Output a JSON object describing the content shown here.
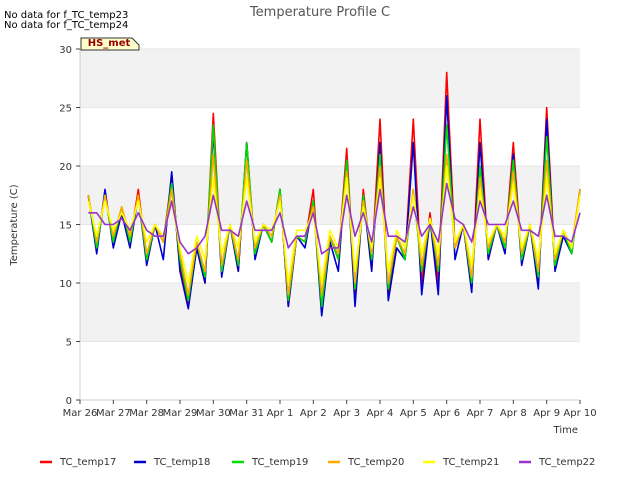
{
  "chart_data": {
    "type": "line",
    "title": "Temperature Profile C",
    "xlabel": "Time",
    "ylabel": "Temperature (C)",
    "ylim": [
      0,
      30
    ],
    "yticks": [
      0,
      5,
      10,
      15,
      20,
      25,
      30
    ],
    "xlim": [
      0,
      15
    ],
    "x_tick_labels": [
      "Mar 26",
      "Mar 27",
      "Mar 28",
      "Mar 29",
      "Mar 30",
      "Mar 31",
      "Apr 1",
      "Apr 2",
      "Apr 3",
      "Apr 4",
      "Apr 5",
      "Apr 6",
      "Apr 7",
      "Apr 8",
      "Apr 9",
      "Apr 10"
    ],
    "grid": "horizontal alternating bands",
    "legend_position": "bottom",
    "notes": [
      "No data for f_TC_temp23",
      "No data for f_TC_temp24"
    ],
    "badge": "HS_met",
    "x": [
      0.25,
      0.5,
      0.75,
      1,
      1.25,
      1.5,
      1.75,
      2,
      2.25,
      2.5,
      2.75,
      3,
      3.25,
      3.5,
      3.75,
      4,
      4.25,
      4.5,
      4.75,
      5,
      5.25,
      5.5,
      5.75,
      6,
      6.25,
      6.5,
      6.75,
      7,
      7.25,
      7.5,
      7.75,
      8,
      8.25,
      8.5,
      8.75,
      9,
      9.25,
      9.5,
      9.75,
      10,
      10.25,
      10.5,
      10.75,
      11,
      11.25,
      11.5,
      11.75,
      12,
      12.25,
      12.5,
      12.75,
      13,
      13.25,
      13.5,
      13.75,
      14,
      14.25,
      14.5,
      14.75,
      15
    ],
    "series": [
      {
        "name": "TC_temp17",
        "color": "#ff0000",
        "values": [
          17.5,
          13,
          17.5,
          13.5,
          16,
          13.5,
          18,
          12,
          15,
          13.5,
          19,
          11.5,
          8,
          13,
          10,
          24.5,
          11,
          15,
          11,
          22,
          12.5,
          15,
          13.5,
          18,
          8,
          14,
          13.5,
          18,
          7.5,
          14,
          12,
          21.5,
          9,
          18,
          11.5,
          24,
          9,
          14,
          12,
          24,
          10,
          16,
          10,
          28,
          13,
          15,
          9.5,
          24,
          12,
          15,
          13,
          22,
          12,
          15,
          10,
          25,
          11.5,
          14.5,
          13,
          18
        ]
      },
      {
        "name": "TC_temp18",
        "color": "#0000cc",
        "values": [
          17.5,
          12.5,
          18,
          13,
          16,
          13,
          17.5,
          11.5,
          15,
          12,
          19.5,
          11,
          7.8,
          13,
          10,
          23,
          10.5,
          15,
          11,
          22,
          12,
          15,
          13.5,
          18,
          8,
          14,
          13,
          17,
          7.2,
          13.5,
          11,
          20.5,
          8,
          17.5,
          11,
          22,
          8.5,
          13,
          12,
          22,
          9,
          15.5,
          9,
          26,
          12,
          15,
          9.2,
          22,
          12,
          15,
          12.5,
          21,
          11.5,
          15,
          9.5,
          24,
          11,
          14,
          12.5,
          18
        ]
      },
      {
        "name": "TC_temp19",
        "color": "#00dd00",
        "values": [
          17.5,
          13,
          17.5,
          13.5,
          16.5,
          13.5,
          17.5,
          12,
          15,
          13.5,
          18.5,
          12,
          8.5,
          13.5,
          10.5,
          23.5,
          11,
          15,
          11.5,
          22,
          12.5,
          15,
          13.5,
          18,
          8.5,
          14,
          13.5,
          17,
          8,
          14,
          12,
          20.5,
          9.5,
          17.5,
          12,
          21,
          9.5,
          14,
          12,
          18,
          11,
          15.5,
          11,
          23.5,
          13,
          15,
          10,
          20,
          12.5,
          15,
          13,
          20.5,
          12,
          15,
          10.5,
          22.5,
          11.5,
          14.5,
          12.5,
          18
        ]
      },
      {
        "name": "TC_temp20",
        "color": "#ffaa00",
        "values": [
          17.5,
          13.5,
          17.5,
          14,
          16.5,
          14,
          17.5,
          12.5,
          15,
          13.5,
          18,
          12.5,
          9,
          13.5,
          11,
          21,
          11.5,
          15,
          12,
          20.5,
          13,
          15,
          14,
          17.5,
          9,
          14,
          14,
          16.5,
          9,
          14,
          12.5,
          19.5,
          10,
          17,
          12.5,
          20,
          10,
          14,
          12.5,
          18,
          11.5,
          15.5,
          11.5,
          21,
          13,
          15,
          10.5,
          19,
          13,
          15,
          13.5,
          19.5,
          12.5,
          15,
          11,
          20.5,
          12,
          14.5,
          13,
          18
        ]
      },
      {
        "name": "TC_temp21",
        "color": "#ffff00",
        "values": [
          17,
          14,
          17,
          14.5,
          16,
          14.5,
          17,
          13.5,
          15,
          14,
          17,
          13,
          10,
          14,
          12,
          19,
          12.5,
          15,
          13,
          19,
          13.5,
          15,
          14.5,
          17,
          10,
          14.5,
          14.5,
          16,
          10,
          14.5,
          13,
          19,
          11,
          16.5,
          13,
          19,
          11,
          14.5,
          13,
          17.5,
          12.5,
          15.5,
          12.5,
          20,
          13.5,
          15,
          11.5,
          18,
          13.5,
          15,
          14,
          18.5,
          13,
          15,
          12,
          19,
          12.5,
          14.5,
          13,
          17.5
        ]
      },
      {
        "name": "TC_temp22",
        "color": "#9933cc",
        "values": [
          16,
          16,
          15,
          15,
          15.5,
          14.5,
          16,
          14.5,
          14,
          14,
          17,
          13.5,
          12.5,
          13,
          14,
          17.5,
          14.5,
          14.5,
          14,
          17,
          14.5,
          14.5,
          14.5,
          16,
          13,
          14,
          14,
          16,
          12.5,
          13,
          13,
          17.5,
          14,
          16,
          13.5,
          18,
          14,
          14,
          13.5,
          16.5,
          14,
          15,
          13.5,
          18.5,
          15.5,
          15,
          13.5,
          17,
          15,
          15,
          15,
          17,
          14.5,
          14.5,
          14,
          17.5,
          14,
          14,
          13.5,
          16
        ]
      }
    ]
  }
}
